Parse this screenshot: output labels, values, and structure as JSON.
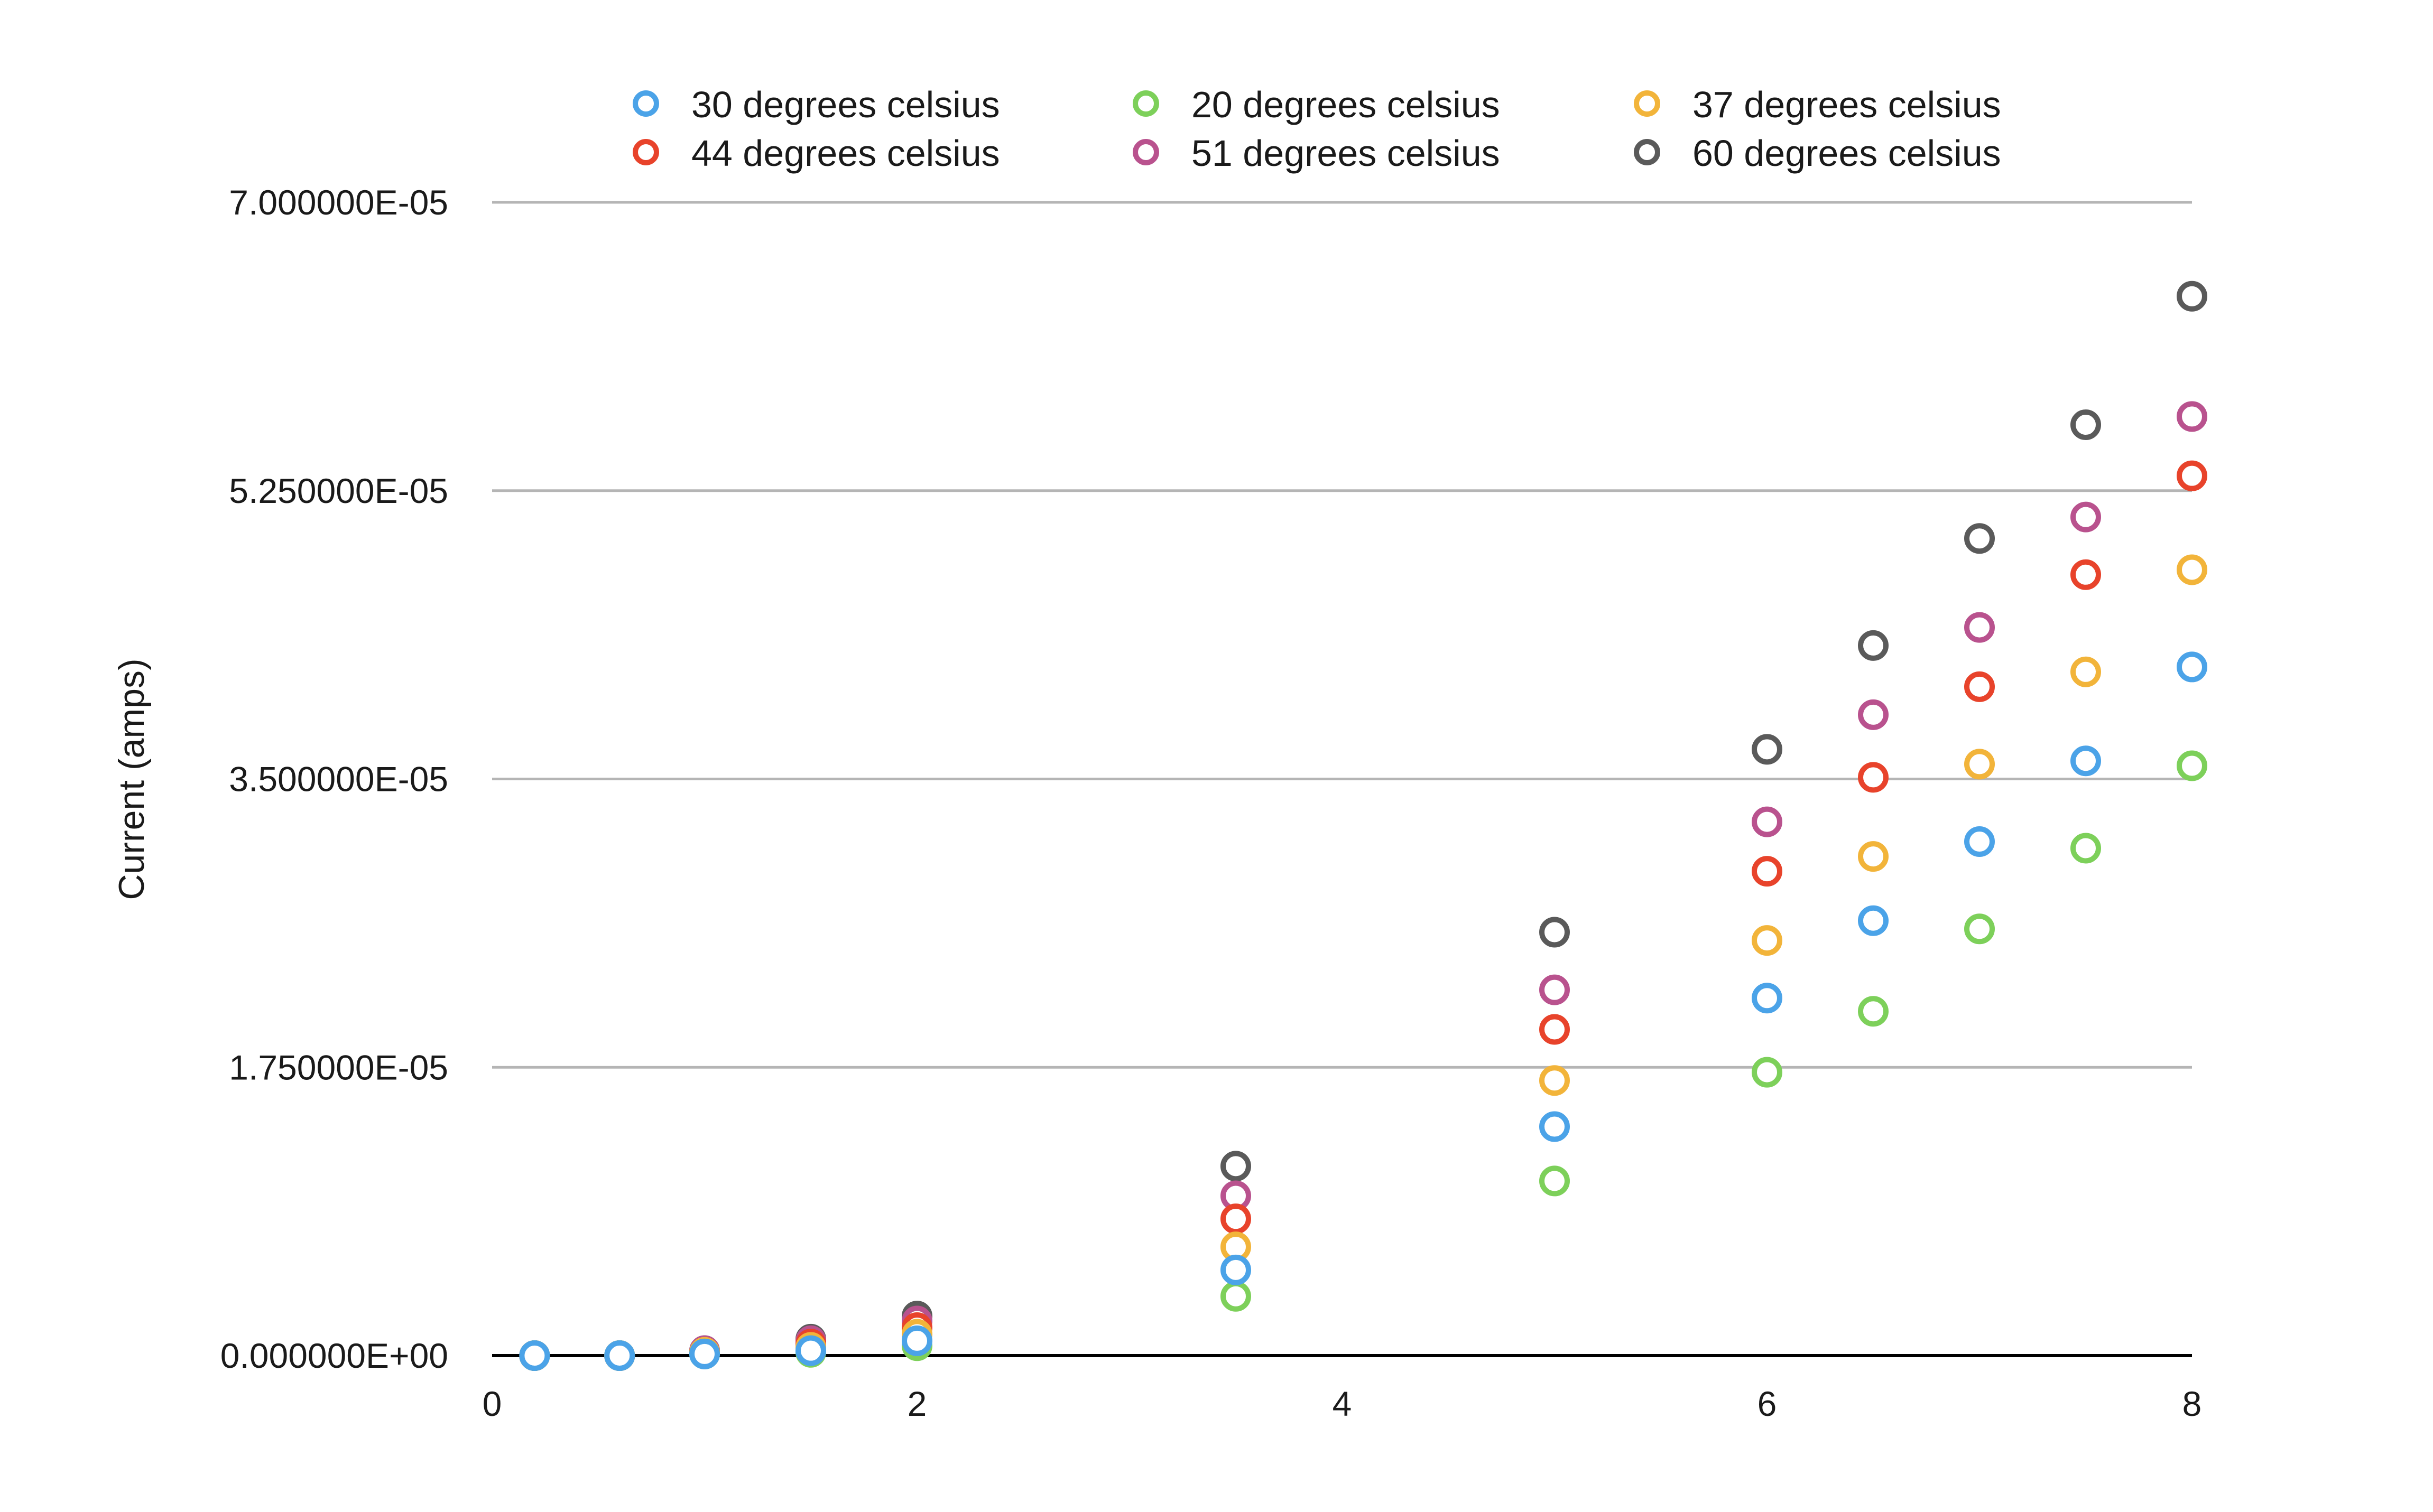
{
  "chart_data": {
    "type": "scatter",
    "title": "",
    "xlabel": "",
    "ylabel": "Current (amps)",
    "xlim": [
      0,
      8
    ],
    "ylim": [
      0,
      7e-05
    ],
    "x_ticks": [
      "0",
      "2",
      "4",
      "6",
      "8"
    ],
    "y_ticks": [
      "0.000000E+00",
      "1.750000E-05",
      "3.500000E-05",
      "5.250000E-05",
      "7.000000E-05"
    ],
    "grid": "horizontal",
    "legend_position": "top",
    "series": [
      {
        "name": "30 degrees celsius",
        "color": "#4ba3e8",
        "x": [
          0.2,
          0.6,
          1.0,
          1.5,
          2.0,
          3.5,
          5.0,
          6.0,
          6.5,
          7.0,
          7.5,
          8.0
        ],
        "y": [
          0.0,
          0.0,
          1e-07,
          3e-07,
          9e-07,
          5.2e-06,
          1.39e-05,
          2.17e-05,
          2.64e-05,
          3.12e-05,
          3.61e-05,
          4.18e-05
        ]
      },
      {
        "name": "20 degrees celsius",
        "color": "#7dd05a",
        "x": [
          0.2,
          0.6,
          1.0,
          1.5,
          2.0,
          3.5,
          5.0,
          6.0,
          6.5,
          7.0,
          7.5,
          8.0
        ],
        "y": [
          0.0,
          0.0,
          1e-07,
          2e-07,
          6e-07,
          3.6e-06,
          1.06e-05,
          1.72e-05,
          2.09e-05,
          2.59e-05,
          3.08e-05,
          3.58e-05
        ]
      },
      {
        "name": "37 degrees celsius",
        "color": "#f2b43a",
        "x": [
          0.2,
          0.6,
          1.0,
          1.5,
          2.0,
          3.5,
          5.0,
          6.0,
          6.5,
          7.0,
          7.5,
          8.0
        ],
        "y": [
          0.0,
          0.0,
          2e-07,
          5e-07,
          1.3e-06,
          6.6e-06,
          1.67e-05,
          2.52e-05,
          3.03e-05,
          3.59e-05,
          4.15e-05,
          4.77e-05
        ]
      },
      {
        "name": "44 degrees celsius",
        "color": "#e8432b",
        "x": [
          0.2,
          0.6,
          1.0,
          1.5,
          2.0,
          3.5,
          5.0,
          6.0,
          6.5,
          7.0,
          7.5,
          8.0
        ],
        "y": [
          0.0,
          0.0,
          2e-07,
          7e-07,
          1.7e-06,
          8.3e-06,
          1.98e-05,
          2.94e-05,
          3.51e-05,
          4.06e-05,
          4.74e-05,
          5.34e-05
        ]
      },
      {
        "name": "51 degrees celsius",
        "color": "#b9528e",
        "x": [
          0.2,
          0.6,
          1.0,
          1.5,
          2.0,
          3.5,
          5.0,
          6.0,
          6.5,
          7.0,
          7.5,
          8.0
        ],
        "y": [
          0.0,
          0.0,
          3e-07,
          9e-07,
          2.1e-06,
          9.7e-06,
          2.22e-05,
          3.24e-05,
          3.89e-05,
          4.42e-05,
          5.09e-05,
          5.7e-05
        ]
      },
      {
        "name": "60 degrees celsius",
        "color": "#5a5a5a",
        "x": [
          0.2,
          0.6,
          1.0,
          1.5,
          2.0,
          3.5,
          5.0,
          6.0,
          6.5,
          7.0,
          7.5,
          8.0
        ],
        "y": [
          0.0,
          0.0,
          3e-07,
          1e-06,
          2.4e-06,
          1.15e-05,
          2.57e-05,
          3.68e-05,
          4.31e-05,
          4.96e-05,
          5.65e-05,
          6.43e-05
        ]
      }
    ]
  }
}
